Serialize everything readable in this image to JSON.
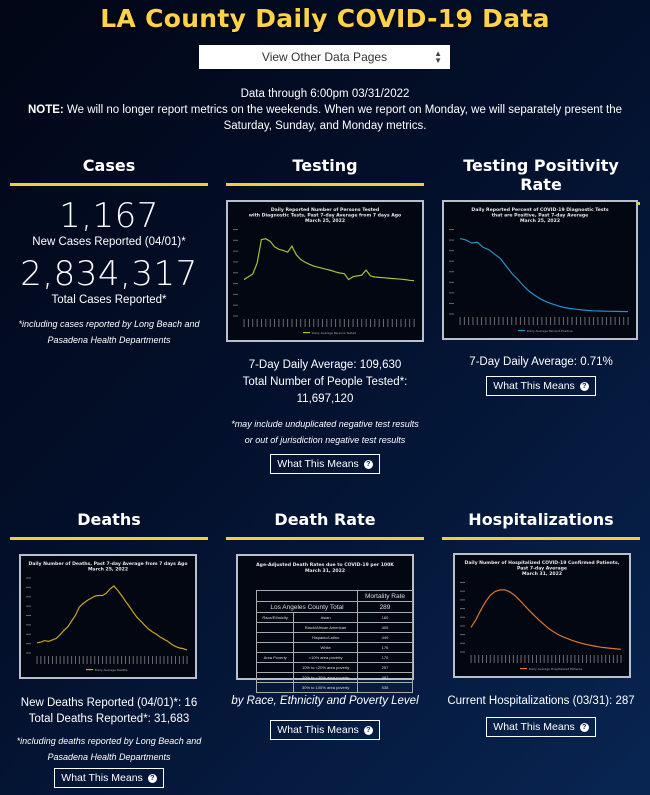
{
  "header": {
    "title": "LA County Daily COVID-19 Data",
    "select_label": "View Other Data Pages",
    "data_through": "Data through 6:00pm 03/31/2022",
    "note_label": "NOTE:",
    "note_text": " We will no longer report metrics on the weekends. When we report on Monday, we will separately present the Saturday, Sunday, and Monday metrics."
  },
  "colors": {
    "title": "#ffd24a",
    "section_bar": "#f5cc3e",
    "testing_line": "#a5c13a",
    "positivity_line": "#2a8fc9",
    "deaths_line": "#c9a520",
    "hosp_line": "#d9782a"
  },
  "cases": {
    "heading": "Cases",
    "new_cases": "1,167",
    "new_cases_label": "New Cases Reported (04/01)*",
    "total_cases": "2,834,317",
    "total_cases_label": "Total Cases Reported*",
    "footnote": "*including cases reported by Long Beach and Pasadena Health Departments"
  },
  "testing": {
    "heading": "Testing",
    "avg": "7-Day Daily Average: 109,630",
    "total_label": "Total Number of People Tested*:",
    "total": "11,697,120",
    "footnote": "*may include unduplicated negative test results or out of jurisdiction negative test results",
    "button": "What This Means",
    "chart_title": [
      "Daily Reported Number of Persons Tested",
      "with Diagnostic Tests, Past 7-day Average from 7 days Ago",
      "March 25, 2022"
    ],
    "legend": "Daily Average Persons Tested"
  },
  "positivity": {
    "heading": "Testing Positivity Rate",
    "avg": "7-Day Daily Average: 0.71%",
    "button": "What This Means",
    "chart_title": [
      "Daily Reported Percent of COVID-19 Diagnostic Tests",
      "that are Positive, Past 7-day Average",
      "March 25, 2022"
    ],
    "legend": "Daily Average Percent Positive"
  },
  "deaths": {
    "heading": "Deaths",
    "new_deaths": "New Deaths Reported (04/01)*: 16",
    "total_deaths": "Total Deaths Reported*: 31,683",
    "footnote": "*including deaths reported by Long Beach and Pasadena Health Departments",
    "button": "What This Means",
    "chart_title": [
      "Daily Number of Deaths, Past 7-day Average from 7 days Ago",
      "March 25, 2022"
    ],
    "legend": "Daily Average Deaths"
  },
  "death_rate": {
    "heading": "Death Rate",
    "caption": "by Race, Ethnicity and Poverty Level",
    "button": "What This Means",
    "table_title": [
      "Age-Adjusted Death Rates due to COVID-19 per 100K",
      "March 31, 2022"
    ],
    "col_header": "Mortality Rate",
    "total_label": "Los Angeles County Total",
    "total_value": "289",
    "rows": [
      {
        "group": "Race/Ethnicity",
        "label": "Asian",
        "value": "160"
      },
      {
        "group": "",
        "label": "Black/African American",
        "value": "405"
      },
      {
        "group": "",
        "label": "Hispanic/Latino",
        "value": "449"
      },
      {
        "group": "",
        "label": "White",
        "value": "176"
      },
      {
        "group": "Area Poverty",
        "label": "<10% area poverty",
        "value": "170"
      },
      {
        "group": "",
        "label": "10% to <20% area poverty",
        "value": "257"
      },
      {
        "group": "",
        "label": "20% to <30% area poverty",
        "value": "387"
      },
      {
        "group": "",
        "label": "30% to 100% area poverty",
        "value": "538"
      }
    ]
  },
  "hospitalizations": {
    "heading": "Hospitalizations",
    "current": "Current Hospitalizations (03/31): 287",
    "button": "What This Means",
    "chart_title": [
      "Daily Number of Hospitalized COVID-19 Confirmed Patients,",
      "Past 7-day Average",
      "March 31, 2022"
    ],
    "legend": "Daily Average Hospitalized Patients"
  },
  "chart_data": [
    {
      "type": "line",
      "title": "Daily Reported Number of Persons Tested with Diagnostic Tests, Past 7-day Average from 7 days Ago",
      "series": [
        {
          "name": "Daily Average Persons Tested",
          "values": [
            100,
            108,
            115,
            145,
            210,
            212,
            205,
            190,
            183,
            180,
            175,
            192,
            168,
            155,
            148,
            142,
            137,
            134,
            131,
            128,
            125,
            121,
            118,
            116,
            100,
            108,
            110,
            112,
            126,
            110,
            107,
            106,
            105,
            104,
            103,
            102,
            101,
            100,
            98,
            97
          ]
        }
      ]
    },
    {
      "type": "line",
      "title": "Daily Reported Percent of COVID-19 Diagnostic Tests that are Positive, Past 7-day Average",
      "series": [
        {
          "name": "Daily Average Percent Positive",
          "values": [
            22.1,
            21.7,
            20.8,
            21.0,
            19.5,
            18.8,
            17.5,
            16.2,
            14.0,
            11.8,
            10.1,
            8.2,
            6.6,
            5.4,
            4.3,
            3.5,
            2.9,
            2.3,
            1.9,
            1.6,
            1.4,
            1.2,
            1.05,
            0.95,
            0.88,
            0.82,
            0.78,
            0.75,
            0.73,
            0.71
          ]
        }
      ]
    },
    {
      "type": "line",
      "title": "Daily Number of Deaths, Past 7-day Average from 7 days Ago",
      "series": [
        {
          "name": "Daily Average Deaths",
          "values": [
            14,
            15,
            17,
            16,
            18,
            20,
            25,
            31,
            36,
            44,
            52,
            63,
            68,
            72,
            75,
            78,
            79,
            79,
            82,
            88,
            92,
            86,
            79,
            71,
            64,
            56,
            49,
            44,
            38,
            33,
            29,
            26,
            22,
            19,
            16,
            12,
            9,
            7,
            6,
            4
          ]
        }
      ]
    },
    {
      "type": "line",
      "title": "Daily Number of Hospitalized COVID-19 Confirmed Patients, Past 7-day Average",
      "series": [
        {
          "name": "Daily Average Hospitalized Patients",
          "values": [
            2600,
            3400,
            4400,
            5300,
            6000,
            6400,
            6550,
            6550,
            6350,
            6000,
            5500,
            4950,
            4400,
            3900,
            3400,
            2950,
            2500,
            2150,
            1850,
            1600,
            1400,
            1200,
            1050,
            900,
            780,
            680,
            580,
            500,
            430,
            380,
            330,
            287
          ]
        }
      ]
    }
  ]
}
